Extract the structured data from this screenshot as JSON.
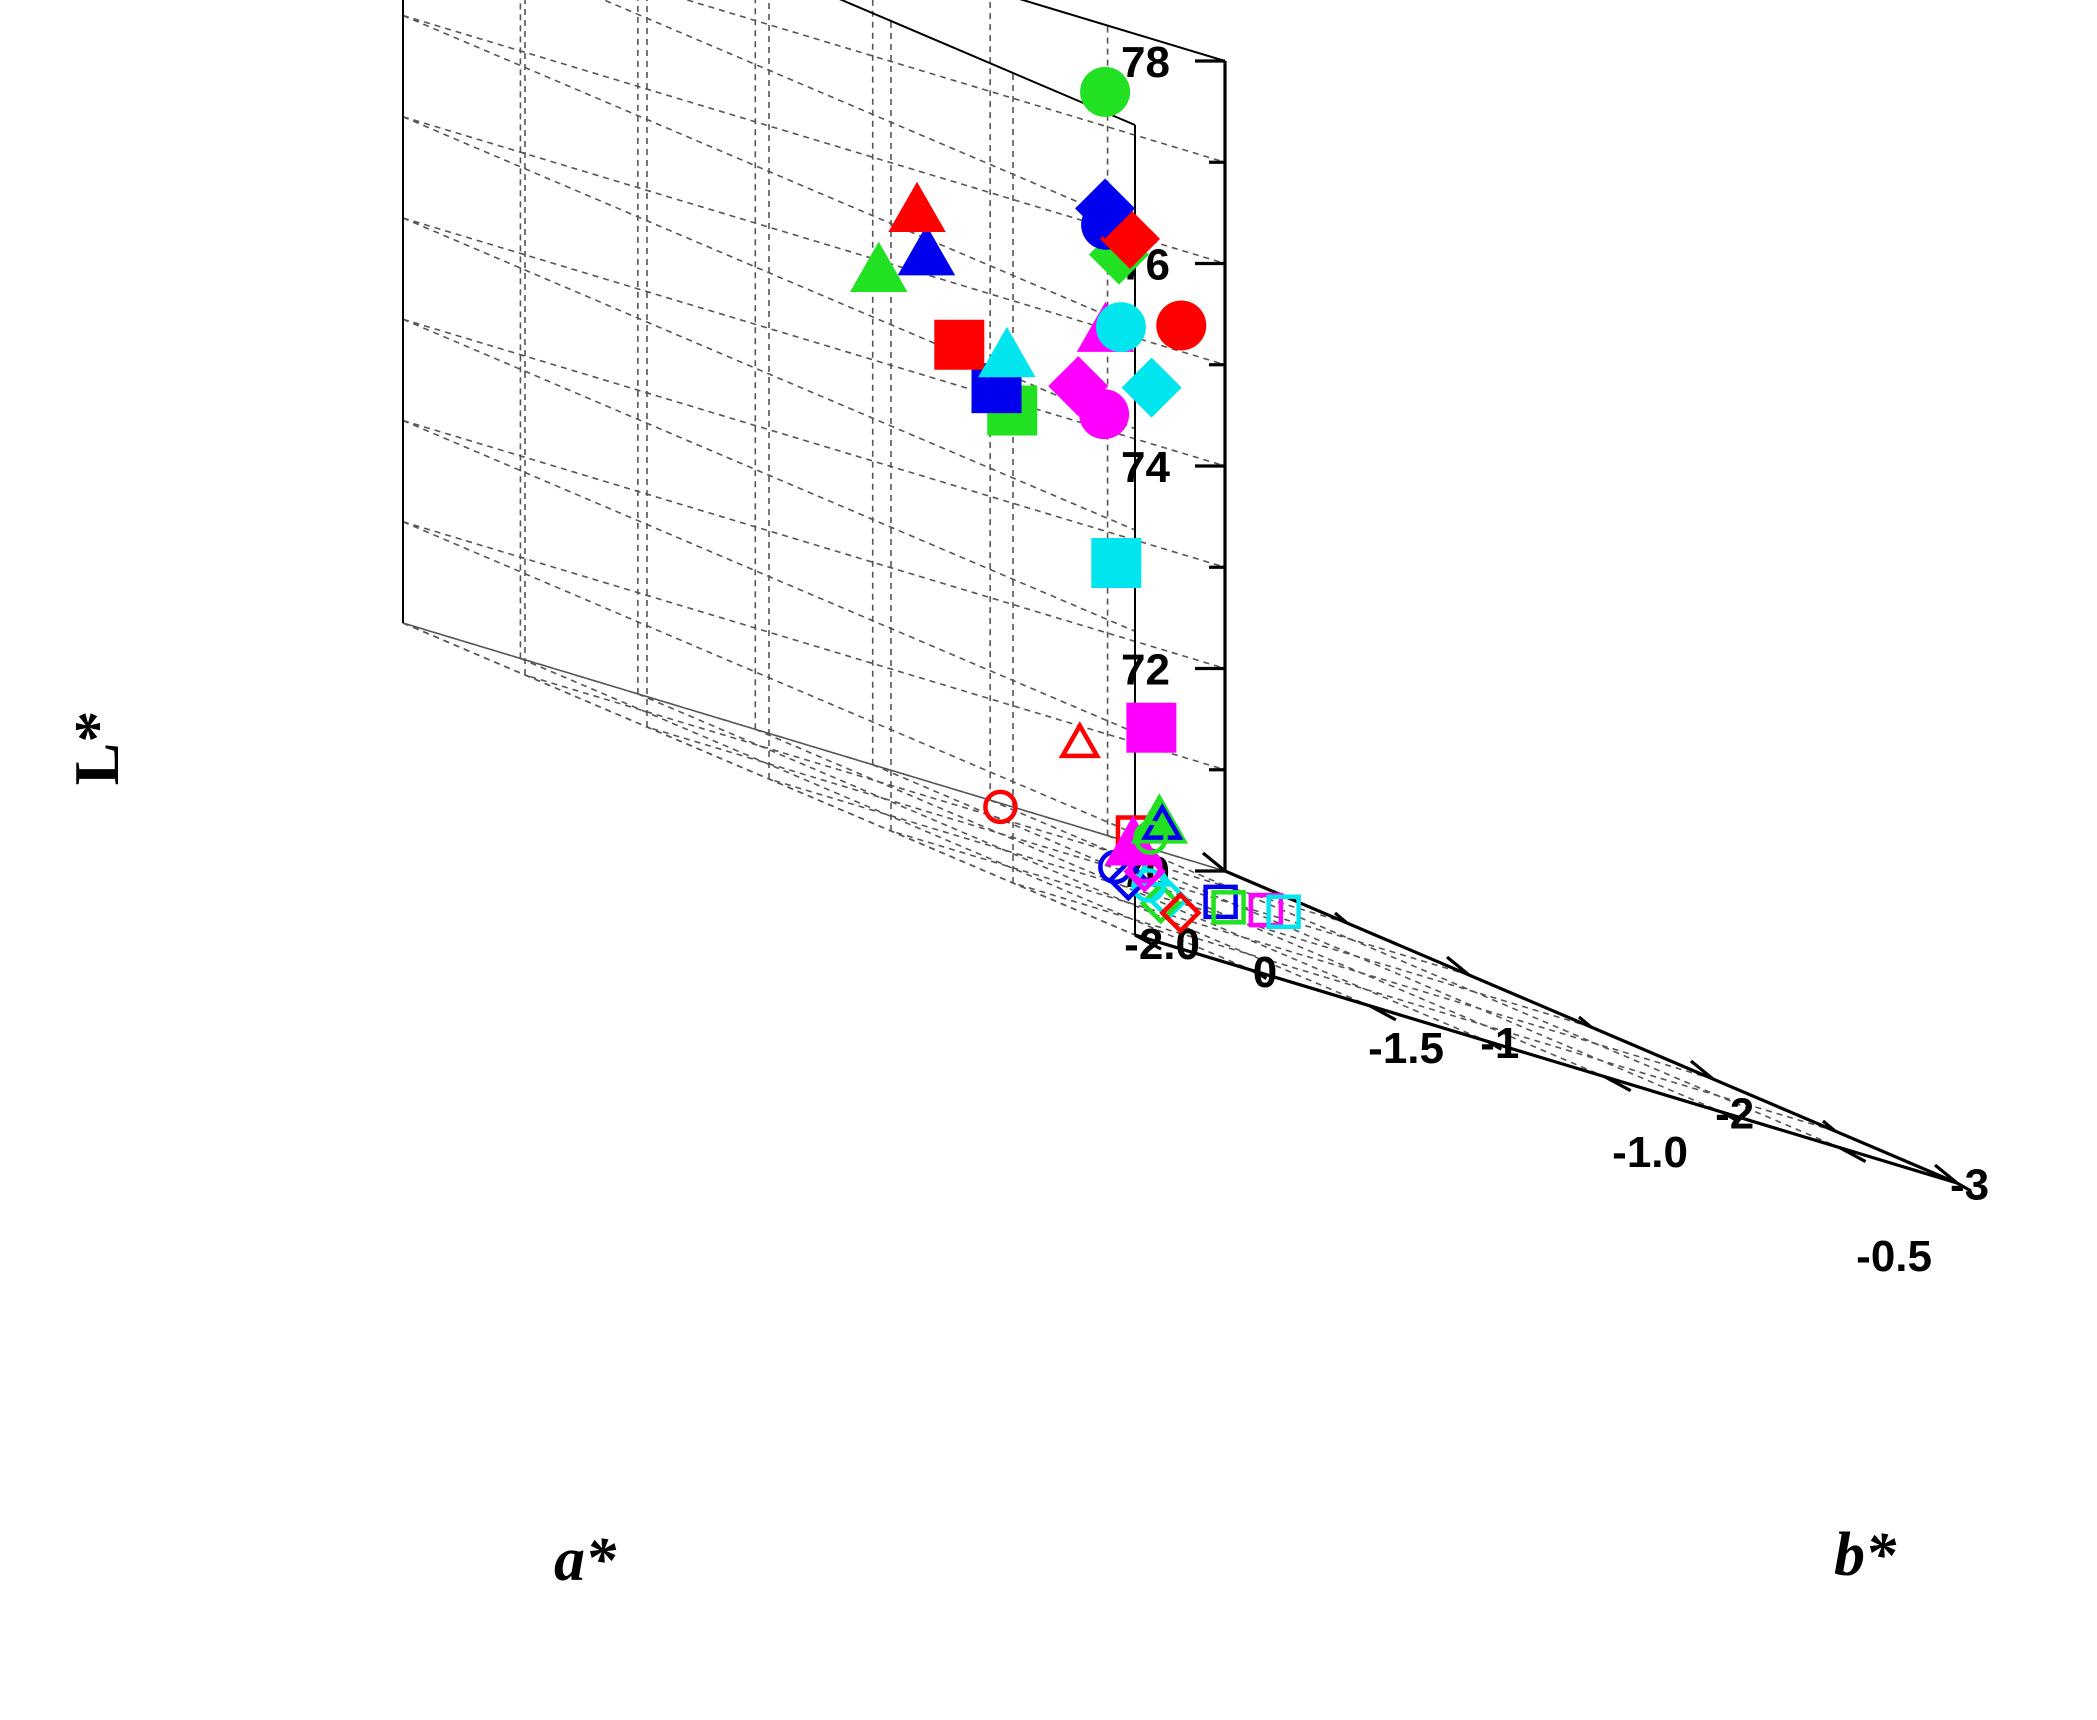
{
  "chart_data": {
    "type": "scatter",
    "projection": "3d",
    "xlabel": "a*",
    "ylabel": "b*",
    "zlabel": "L*",
    "xlim": [
      -2.0,
      -0.5
    ],
    "ylim": [
      -3.5,
      0
    ],
    "zlim": [
      70,
      78
    ],
    "x_ticks": [
      "-2.0",
      "-1.5",
      "-1.0",
      "-0.5"
    ],
    "y_ticks": [
      "0",
      "-1",
      "-2",
      "-3"
    ],
    "z_ticks": [
      "78",
      "76",
      "74",
      "72",
      "70"
    ],
    "colors": {
      "red": "#ff0000",
      "blue": "#0000ee",
      "green": "#22e022",
      "cyan": "#00e5ee",
      "magenta": "#ff00ff"
    },
    "points": [
      {
        "a": -0.98,
        "b": -0.87,
        "L": 77.95,
        "shape": "circle",
        "fill": "filled",
        "color": "green"
      },
      {
        "a": -1.11,
        "b": -1.14,
        "L": 76.72,
        "shape": "diamond",
        "fill": "filled",
        "color": "blue"
      },
      {
        "a": -0.9,
        "b": -0.81,
        "L": 76.62,
        "shape": "diamond",
        "fill": "filled",
        "color": "red"
      },
      {
        "a": -1.18,
        "b": -1.29,
        "L": 76.52,
        "shape": "circle",
        "fill": "filled",
        "color": "blue"
      },
      {
        "a": -1.12,
        "b": -1.22,
        "L": 76.3,
        "shape": "diamond",
        "fill": "filled",
        "color": "green"
      },
      {
        "a": -1.18,
        "b": -1.61,
        "L": 75.75,
        "shape": "circle",
        "fill": "filled",
        "color": "red"
      },
      {
        "a": -1.76,
        "b": -1.69,
        "L": 75.75,
        "shape": "triangle",
        "fill": "filled",
        "color": "red"
      },
      {
        "a": -1.76,
        "b": -1.73,
        "L": 75.35,
        "shape": "triangle",
        "fill": "filled",
        "color": "blue"
      },
      {
        "a": -1.27,
        "b": -1.54,
        "L": 75.5,
        "shape": "circle",
        "fill": "filled",
        "color": "cyan"
      },
      {
        "a": -1.34,
        "b": -1.62,
        "L": 75.38,
        "shape": "triangle",
        "fill": "filled",
        "color": "magenta"
      },
      {
        "a": -1.26,
        "b": -1.65,
        "L": 75.0,
        "shape": "diamond",
        "fill": "filled",
        "color": "cyan"
      },
      {
        "a": -1.8,
        "b": -1.61,
        "L": 75.02,
        "shape": "triangle",
        "fill": "filled",
        "color": "green"
      },
      {
        "a": -1.42,
        "b": -1.67,
        "L": 74.7,
        "shape": "diamond",
        "fill": "filled",
        "color": "magenta"
      },
      {
        "a": -1.6,
        "b": -1.74,
        "L": 74.68,
        "shape": "triangle",
        "fill": "filled",
        "color": "cyan"
      },
      {
        "a": -1.42,
        "b": -1.78,
        "L": 74.5,
        "shape": "circle",
        "fill": "filled",
        "color": "magenta"
      },
      {
        "a": -1.76,
        "b": -1.87,
        "L": 74.55,
        "shape": "square",
        "fill": "filled",
        "color": "red"
      },
      {
        "a": -1.78,
        "b": -2.07,
        "L": 74.22,
        "shape": "square",
        "fill": "filled",
        "color": "blue"
      },
      {
        "a": -1.69,
        "b": -1.95,
        "L": 74.1,
        "shape": "square",
        "fill": "filled",
        "color": "green"
      },
      {
        "a": -1.78,
        "b": -2.58,
        "L": 72.85,
        "shape": "square",
        "fill": "filled",
        "color": "cyan"
      },
      {
        "a": -1.66,
        "b": -2.48,
        "L": 71.4,
        "shape": "square",
        "fill": "filled",
        "color": "magenta"
      },
      {
        "a": -1.72,
        "b": -2.3,
        "L": 71.0,
        "shape": "triangle",
        "fill": "open",
        "color": "red"
      },
      {
        "a": -0.93,
        "b": -0.96,
        "L": 70.75,
        "shape": "circle",
        "fill": "open",
        "color": "green"
      },
      {
        "a": -1.48,
        "b": -2.14,
        "L": 70.6,
        "shape": "triangle",
        "fill": "filled",
        "color": "green"
      },
      {
        "a": -1.45,
        "b": -2.09,
        "L": 70.6,
        "shape": "triangle",
        "fill": "open",
        "color": "blue"
      },
      {
        "a": -1.44,
        "b": -1.38,
        "L": 70.3,
        "shape": "circle",
        "fill": "open",
        "color": "red"
      },
      {
        "a": -1.51,
        "b": -2.09,
        "L": 70.4,
        "shape": "square",
        "fill": "open",
        "color": "red"
      },
      {
        "a": -1.24,
        "b": -1.53,
        "L": 70.45,
        "shape": "triangle",
        "fill": "filled",
        "color": "magenta"
      },
      {
        "a": -1.12,
        "b": -1.26,
        "L": 70.15,
        "shape": "diamond",
        "fill": "open",
        "color": "blue"
      },
      {
        "a": -1.19,
        "b": -1.35,
        "L": 70.2,
        "shape": "circle",
        "fill": "open",
        "color": "blue"
      },
      {
        "a": -0.84,
        "b": -0.9,
        "L": 70.15,
        "shape": "diamond",
        "fill": "open",
        "color": "red"
      },
      {
        "a": -1.38,
        "b": -1.9,
        "L": 70.15,
        "shape": "triangle",
        "fill": "open",
        "color": "cyan"
      },
      {
        "a": -1.3,
        "b": -1.72,
        "L": 70.05,
        "shape": "circle",
        "fill": "open",
        "color": "cyan"
      },
      {
        "a": -1.26,
        "b": -1.62,
        "L": 70.2,
        "shape": "diamond",
        "fill": "open",
        "color": "magenta"
      },
      {
        "a": -1.35,
        "b": -1.81,
        "L": 70.2,
        "shape": "circle",
        "fill": "open",
        "color": "magenta"
      },
      {
        "a": -1.25,
        "b": -1.7,
        "L": 70.0,
        "shape": "diamond",
        "fill": "open",
        "color": "cyan"
      },
      {
        "a": -1.15,
        "b": -1.46,
        "L": 70.0,
        "shape": "diamond",
        "fill": "open",
        "color": "green"
      },
      {
        "a": -1.47,
        "b": -2.38,
        "L": 70.0,
        "shape": "square",
        "fill": "open",
        "color": "blue"
      },
      {
        "a": -1.42,
        "b": -2.31,
        "L": 70.0,
        "shape": "square",
        "fill": "open",
        "color": "green"
      },
      {
        "a": -1.56,
        "b": -2.76,
        "L": 70.0,
        "shape": "square",
        "fill": "open",
        "color": "magenta"
      },
      {
        "a": -1.62,
        "b": -2.96,
        "L": 70.0,
        "shape": "square",
        "fill": "open",
        "color": "cyan"
      }
    ]
  }
}
